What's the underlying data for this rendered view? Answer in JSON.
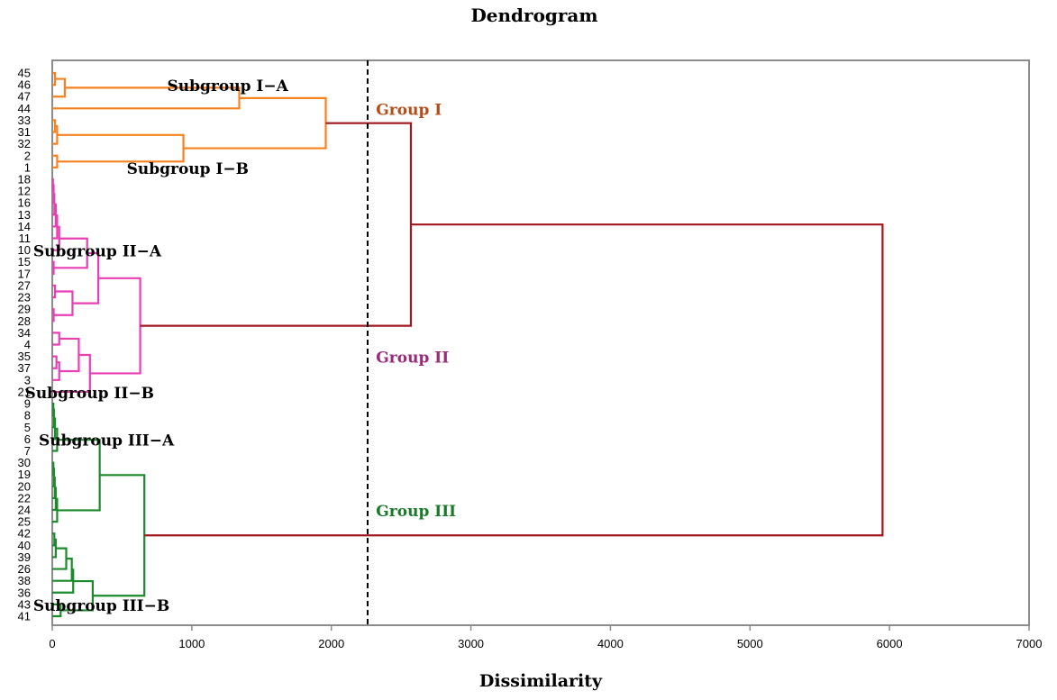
{
  "chart_data": {
    "type": "dendrogram",
    "title": "Dendrogram",
    "xlabel": "Dissimilarity",
    "ylabel": "",
    "xlim": [
      0,
      7000
    ],
    "xticks": [
      0,
      1000,
      2000,
      3000,
      4000,
      5000,
      6000,
      7000
    ],
    "xtick_labels": [
      "0",
      "1000",
      "2000",
      "3000",
      "4000",
      "5000",
      "6000",
      "7000"
    ],
    "cut_line_dissimilarity": 2260,
    "leaves": [
      "45",
      "46",
      "47",
      "44",
      "33",
      "31",
      "32",
      "2",
      "1",
      "18",
      "12",
      "16",
      "13",
      "14",
      "11",
      "10",
      "15",
      "17",
      "27",
      "23",
      "29",
      "28",
      "34",
      "4",
      "35",
      "37",
      "3",
      "21",
      "9",
      "8",
      "5",
      "6",
      "7",
      "30",
      "19",
      "20",
      "22",
      "24",
      "25",
      "42",
      "40",
      "39",
      "26",
      "38",
      "36",
      "43",
      "41"
    ],
    "colors": {
      "group_1": "#f5821f",
      "group_2": "#e83fb5",
      "group_3": "#1a8a2a",
      "root": "#a0181e",
      "group_1_label": "#b34d1a",
      "group_2_label": "#9a2a7a",
      "group_3_label": "#1a7a2a"
    },
    "merges": [
      {
        "a": "45",
        "b": "46",
        "h": 20,
        "color": "group_1"
      },
      {
        "a": "m0",
        "b": "47",
        "h": 90,
        "color": "group_1"
      },
      {
        "a": "m1",
        "b": "44",
        "h": 1340,
        "color": "group_1"
      },
      {
        "a": "33",
        "b": "31",
        "h": 20,
        "color": "group_1"
      },
      {
        "a": "m3",
        "b": "32",
        "h": 35,
        "color": "group_1"
      },
      {
        "a": "2",
        "b": "1",
        "h": 35,
        "color": "group_1"
      },
      {
        "a": "m4",
        "b": "m5",
        "h": 940,
        "color": "group_1"
      },
      {
        "a": "m2",
        "b": "m6",
        "h": 1960,
        "color": "group_1"
      },
      {
        "a": "18",
        "b": "12",
        "h": 5,
        "color": "group_2"
      },
      {
        "a": "m8",
        "b": "16",
        "h": 10,
        "color": "group_2"
      },
      {
        "a": "m9",
        "b": "13",
        "h": 15,
        "color": "group_2"
      },
      {
        "a": "m10",
        "b": "14",
        "h": 25,
        "color": "group_2"
      },
      {
        "a": "m11",
        "b": "11",
        "h": 35,
        "color": "group_2"
      },
      {
        "a": "m12",
        "b": "10",
        "h": 50,
        "color": "group_2"
      },
      {
        "a": "15",
        "b": "17",
        "h": 10,
        "color": "group_2"
      },
      {
        "a": "m13",
        "b": "m14",
        "h": 250,
        "color": "group_2"
      },
      {
        "a": "27",
        "b": "23",
        "h": 20,
        "color": "group_2"
      },
      {
        "a": "29",
        "b": "28",
        "h": 10,
        "color": "group_2"
      },
      {
        "a": "m16",
        "b": "m17",
        "h": 145,
        "color": "group_2"
      },
      {
        "a": "m15",
        "b": "m18",
        "h": 330,
        "color": "group_2"
      },
      {
        "a": "34",
        "b": "4",
        "h": 50,
        "color": "group_2"
      },
      {
        "a": "35",
        "b": "37",
        "h": 30,
        "color": "group_2"
      },
      {
        "a": "m21",
        "b": "3",
        "h": 50,
        "color": "group_2"
      },
      {
        "a": "m20",
        "b": "m22",
        "h": 190,
        "color": "group_2"
      },
      {
        "a": "m23",
        "b": "21",
        "h": 270,
        "color": "group_2"
      },
      {
        "a": "m19",
        "b": "m24",
        "h": 630,
        "color": "group_2"
      },
      {
        "a": "9",
        "b": "8",
        "h": 8,
        "color": "group_3"
      },
      {
        "a": "m26",
        "b": "5",
        "h": 12,
        "color": "group_3"
      },
      {
        "a": "m27",
        "b": "6",
        "h": 20,
        "color": "group_3"
      },
      {
        "a": "m28",
        "b": "7",
        "h": 35,
        "color": "group_3"
      },
      {
        "a": "30",
        "b": "19",
        "h": 8,
        "color": "group_3"
      },
      {
        "a": "m30",
        "b": "20",
        "h": 12,
        "color": "group_3"
      },
      {
        "a": "m31",
        "b": "22",
        "h": 18,
        "color": "group_3"
      },
      {
        "a": "m32",
        "b": "24",
        "h": 25,
        "color": "group_3"
      },
      {
        "a": "m33",
        "b": "25",
        "h": 35,
        "color": "group_3"
      },
      {
        "a": "m29",
        "b": "m34",
        "h": 340,
        "color": "group_3"
      },
      {
        "a": "42",
        "b": "40",
        "h": 15,
        "color": "group_3"
      },
      {
        "a": "m36",
        "b": "39",
        "h": 25,
        "color": "group_3"
      },
      {
        "a": "m37",
        "b": "26",
        "h": 100,
        "color": "group_3"
      },
      {
        "a": "m38",
        "b": "38",
        "h": 140,
        "color": "group_3"
      },
      {
        "a": "m39",
        "b": "36",
        "h": 150,
        "color": "group_3"
      },
      {
        "a": "43",
        "b": "41",
        "h": 60,
        "color": "group_3"
      },
      {
        "a": "m40",
        "b": "m41",
        "h": 290,
        "color": "group_3"
      },
      {
        "a": "m35",
        "b": "m42",
        "h": 660,
        "color": "group_3"
      },
      {
        "a": "m7",
        "b": "m25",
        "h": 2570,
        "color": "root"
      },
      {
        "a": "m44",
        "b": "m43",
        "h": 5950,
        "color": "root"
      }
    ],
    "annotations": [
      {
        "text": "Subgroup I−A",
        "near_leaf": "46",
        "at_dissimilarity": 1340,
        "color": "text"
      },
      {
        "text": "Subgroup I−B",
        "near_leaf": "1",
        "at_dissimilarity": 1050,
        "color": "text"
      },
      {
        "text": "Group I",
        "near_leaf": "44",
        "at_dissimilarity": 2320,
        "color": "group_1_label"
      },
      {
        "text": "Subgroup II−A",
        "near_leaf": "10",
        "at_dissimilarity": 380,
        "color": "text"
      },
      {
        "text": "Subgroup II−B",
        "near_leaf": "21",
        "at_dissimilarity": 320,
        "color": "text"
      },
      {
        "text": "Group II",
        "near_leaf": "35",
        "at_dissimilarity": 2320,
        "color": "group_2_label"
      },
      {
        "text": "Subgroup III−A",
        "near_leaf": "6",
        "at_dissimilarity": 420,
        "color": "text"
      },
      {
        "text": "Subgroup III−B",
        "near_leaf": "43",
        "at_dissimilarity": 380,
        "color": "text"
      },
      {
        "text": "Group III",
        "near_leaf": "24",
        "at_dissimilarity": 2320,
        "color": "group_3_label"
      }
    ]
  }
}
